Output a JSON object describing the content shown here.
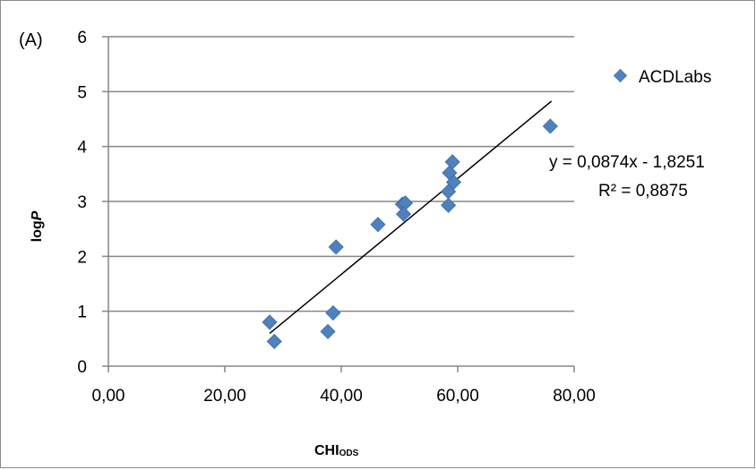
{
  "chart_data": {
    "type": "scatter",
    "panel_label": "(A)",
    "xlabel": {
      "main": "CHI",
      "sub": "ODS"
    },
    "ylabel": {
      "main": "log",
      "italic": "P"
    },
    "xlim": [
      0,
      80
    ],
    "ylim": [
      0,
      6
    ],
    "x_ticks": [
      "0,00",
      "20,00",
      "40,00",
      "60,00",
      "80,00"
    ],
    "y_ticks": [
      "0",
      "1",
      "2",
      "3",
      "4",
      "5",
      "6"
    ],
    "grid": "horizontal",
    "legend_position": "right",
    "series": [
      {
        "name": "ACDLabs",
        "color": "#4F81BD",
        "marker": "diamond",
        "points": [
          [
            27.7,
            0.8
          ],
          [
            28.5,
            0.45
          ],
          [
            37.7,
            0.63
          ],
          [
            38.6,
            0.97
          ],
          [
            39.1,
            2.17
          ],
          [
            46.3,
            2.58
          ],
          [
            50.5,
            2.95
          ],
          [
            51.0,
            2.97
          ],
          [
            50.7,
            2.77
          ],
          [
            58.4,
            2.93
          ],
          [
            58.4,
            3.18
          ],
          [
            58.6,
            3.52
          ],
          [
            59.1,
            3.72
          ],
          [
            59.3,
            3.35
          ],
          [
            75.9,
            4.37
          ]
        ]
      }
    ],
    "trendline": {
      "slope": 0.0874,
      "intercept": -1.8251,
      "x_range": [
        27.7,
        76.1
      ],
      "color": "#000000"
    },
    "annotations": {
      "equation": "y = 0,0874x - 1,8251",
      "r_squared": "R² = 0,8875"
    }
  }
}
